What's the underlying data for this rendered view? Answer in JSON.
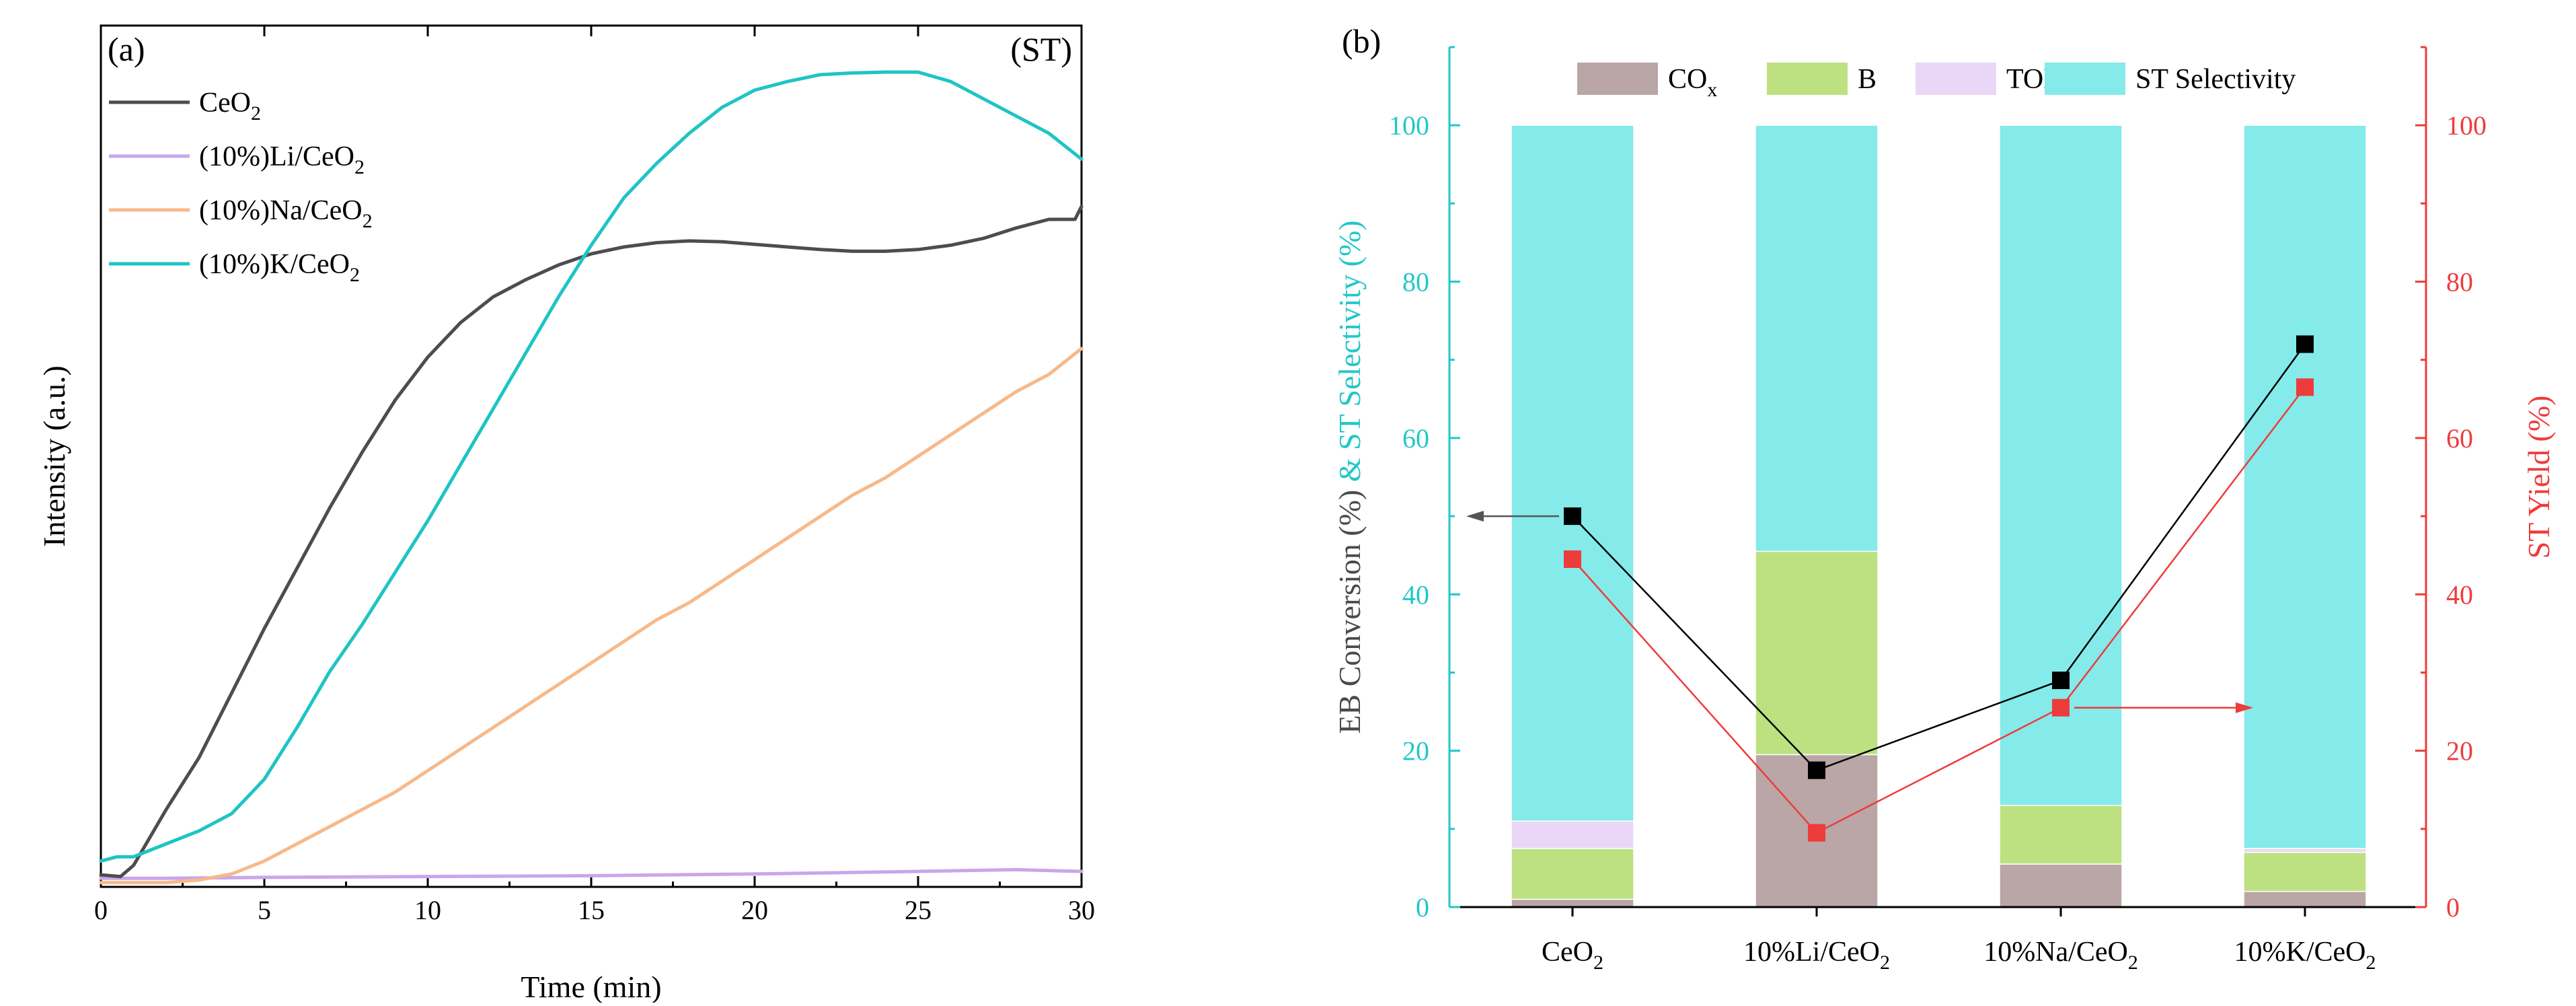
{
  "chart_data": [
    {
      "panel_label": "(a)",
      "corner_label": "(ST)",
      "type": "line",
      "xlabel": "Time (min)",
      "ylabel": "Intensity (a.u.)",
      "xlim": [
        0,
        30
      ],
      "ylim": [
        0,
        100
      ],
      "xticks": [
        "0",
        "5",
        "10",
        "15",
        "20",
        "25",
        "30"
      ],
      "legend_position": "top-left",
      "series": [
        {
          "name": "CeO2",
          "base": "CeO",
          "sub": "2",
          "color": "#4d4d4d",
          "x": [
            0,
            0.6,
            1,
            2,
            3,
            4,
            5,
            6,
            7,
            8,
            9,
            10,
            11,
            12,
            13,
            14,
            15,
            16,
            17,
            18,
            19,
            20,
            21,
            22,
            23,
            24,
            25,
            26,
            27,
            28,
            29,
            29.8,
            30
          ],
          "y": [
            1.4,
            1.2,
            2.5,
            9,
            15,
            22.5,
            30,
            37,
            44,
            50.5,
            56.5,
            61.5,
            65.5,
            68.5,
            70.5,
            72.2,
            73.5,
            74.3,
            74.8,
            75,
            74.9,
            74.6,
            74.3,
            74,
            73.8,
            73.8,
            74,
            74.5,
            75.3,
            76.5,
            77.5,
            77.5,
            79
          ]
        },
        {
          "name": "(10%)Li/CeO2",
          "base": "(10%)Li/CeO",
          "sub": "2",
          "color": "#c9a6ea",
          "x": [
            0,
            2,
            5,
            10,
            15,
            20,
            25,
            28,
            30
          ],
          "y": [
            1.0,
            1.0,
            1.1,
            1.2,
            1.3,
            1.5,
            1.8,
            2.0,
            1.8
          ]
        },
        {
          "name": "(10%)Na/CeO2",
          "base": "(10%)Na/CeO",
          "sub": "2",
          "color": "#f7b98a",
          "x": [
            0,
            2,
            3,
            4,
            5,
            6,
            7,
            8,
            9,
            10,
            11,
            12,
            13,
            14,
            15,
            16,
            17,
            18,
            19,
            20,
            21,
            22,
            23,
            24,
            25,
            26,
            27,
            28,
            29,
            30
          ],
          "y": [
            0.5,
            0.5,
            0.8,
            1.5,
            3,
            5,
            7,
            9,
            11,
            13.5,
            16,
            18.5,
            21,
            23.5,
            26,
            28.5,
            31,
            33,
            35.5,
            38,
            40.5,
            43,
            45.5,
            47.5,
            50,
            52.5,
            55,
            57.5,
            59.5,
            62.5
          ]
        },
        {
          "name": "(10%)K/CeO2",
          "base": "(10%)K/CeO",
          "sub": "2",
          "color": "#1fc4c4",
          "x": [
            0,
            0.5,
            1,
            2,
            3,
            4,
            5,
            6,
            7,
            8,
            9,
            10,
            11,
            12,
            13,
            14,
            15,
            16,
            17,
            18,
            19,
            20,
            21,
            22,
            23,
            24,
            25,
            26,
            27,
            28,
            29,
            30
          ],
          "y": [
            3,
            3.5,
            3.5,
            5,
            6.5,
            8.5,
            12.5,
            18.5,
            25,
            30.5,
            36.5,
            42.5,
            49,
            55.5,
            62,
            68.5,
            74.5,
            80,
            84,
            87.5,
            90.5,
            92.5,
            93.5,
            94.3,
            94.5,
            94.6,
            94.6,
            93.5,
            91.5,
            89.5,
            87.5,
            84.5
          ]
        }
      ]
    },
    {
      "panel_label": "(b)",
      "type": "bar",
      "stacked": true,
      "categories": [
        {
          "name": "CeO2",
          "base": "CeO",
          "sub": "2"
        },
        {
          "name": "10%Li/CeO2",
          "base": "10%Li/CeO",
          "sub": "2"
        },
        {
          "name": "10%Na/CeO2",
          "base": "10%Na/CeO",
          "sub": "2"
        },
        {
          "name": "10%K/CeO2",
          "base": "10%K/CeO",
          "sub": "2"
        }
      ],
      "ylabel_left_part1": "EB Conversion (%)",
      "ylabel_left_part2": "& ST Selectivity (%)",
      "ylabel_right": "ST Yield (%)",
      "ylim": [
        0,
        110
      ],
      "y2lim": [
        0,
        110
      ],
      "yticks": [
        "0",
        "20",
        "40",
        "60",
        "80",
        "100"
      ],
      "legend_position": "top",
      "series": [
        {
          "name": "COx",
          "base": "CO",
          "sub": "x",
          "color": "#baa6a6",
          "values": [
            1,
            19.5,
            5.5,
            2
          ]
        },
        {
          "name": "B",
          "base": "B",
          "sub": "",
          "color": "#bde180",
          "values": [
            6.5,
            26,
            7.5,
            5
          ]
        },
        {
          "name": "TOL",
          "base": "TOL",
          "sub": "",
          "color": "#ead7f7",
          "values": [
            3.5,
            0,
            0,
            0.5
          ]
        },
        {
          "name": "ST Selectivity",
          "base": "ST Selectivity",
          "sub": "",
          "color": "#85eaea",
          "values": [
            89,
            54.5,
            87,
            92.5
          ]
        }
      ],
      "lines": [
        {
          "name": "EB Conversion",
          "axis": "left",
          "color": "#000000",
          "values": [
            50,
            17.5,
            29,
            72
          ]
        },
        {
          "name": "ST Yield",
          "axis": "right",
          "color": "#ee3b3b",
          "values": [
            44.5,
            9.5,
            25.5,
            66.5
          ]
        }
      ],
      "colors": {
        "left_axis_text": "#4a4a4a",
        "left_axis_line": "#22c7c7",
        "right_axis": "#ee3b3b"
      }
    }
  ]
}
